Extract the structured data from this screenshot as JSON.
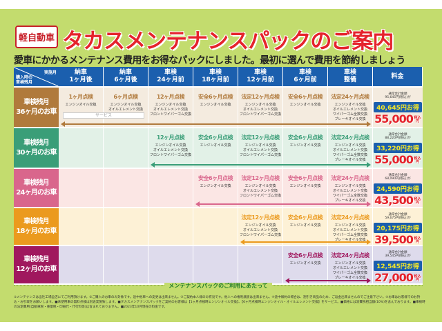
{
  "badge": "軽自動車",
  "title": "タカスメンテナンスパックのご案内",
  "subtitle": "愛車にかかるメンテナンス費用をお得なパックにしました。最初に選んで費用を節約しましょう",
  "corner": {
    "top": "実施月",
    "bottom": "購入時の\n車検残月"
  },
  "columns": [
    "納車\n1ヶ月後",
    "納車\n6ヶ月後",
    "車検\n24ヶ月前",
    "車検\n18ヶ月前",
    "車検\n12ヶ月前",
    "車検\n6ヶ月前",
    "車検\n整備",
    "料金"
  ],
  "service_label": "サービス",
  "rows": [
    {
      "label": "車検残月\n36ヶ月のお車",
      "color": "#b07a3c",
      "bg": "#f4ebdf",
      "start": 0,
      "cells": [
        [
          "1ヶ月点検",
          "エンジンオイル交換"
        ],
        [
          "6ヶ月点検",
          "エンジンオイル交換\nオイルエレメント交換"
        ],
        [
          "12ヶ月点検",
          "エンジンオイル交換\nオイルエレメント交換\nフロントワイパーゴム交換"
        ],
        [
          "安全6ヶ月点検",
          "エンジンオイル交換"
        ],
        [
          "法定12ヶ月点検",
          "エンジンオイル交換\nオイルエレメント交換\nフロントワイパーゴム交換"
        ],
        [
          "安全6ヶ月点検",
          "エンジンオイル交換"
        ],
        [
          "法定24ヶ月点検",
          "エンジンオイル交換\nオイルエレメント交換\nワイパーゴム全数交換\nブレーキオイル交換"
        ]
      ],
      "price": {
        "normal": "通常合計金額\n95,645円(税込)が",
        "save": "40,645円お得",
        "amount": "55,000",
        "unit": "税込円"
      }
    },
    {
      "label": "車検残月\n30ヶ月のお車",
      "color": "#3a9e78",
      "bg": "#e2f1e7",
      "start": 2,
      "cells": [
        null,
        null,
        [
          "12ヶ月点検",
          "エンジンオイル交換\nオイルエレメント交換\nフロントワイパーゴム交換"
        ],
        [
          "安全6ヶ月点検",
          "エンジンオイル交換"
        ],
        [
          "法定12ヶ月点検",
          "エンジンオイル交換\nオイルエレメント交換\nフロントワイパーゴム交換"
        ],
        [
          "安全6ヶ月点検",
          "エンジンオイル交換"
        ],
        [
          "法定24ヶ月点検",
          "エンジンオイル交換\nオイルエレメント交換\nワイパーゴム全数交換\nブレーキオイル交換"
        ]
      ],
      "price": {
        "normal": "通常合計金額\n88,220円(税込)が",
        "save": "33,220円お得",
        "amount": "55,000",
        "unit": "税込円"
      }
    },
    {
      "label": "車検残月\n24ヶ月のお車",
      "color": "#d9668c",
      "bg": "#fbe6e4",
      "start": 3,
      "cells": [
        null,
        null,
        null,
        [
          "安全6ヶ月点検",
          "エンジンオイル交換"
        ],
        [
          "法定12ヶ月点検",
          "エンジンオイル交換\nオイルエレメント交換\nフロントワイパーゴム交換"
        ],
        [
          "安全6ヶ月点検",
          "エンジンオイル交換"
        ],
        [
          "法定24ヶ月点検",
          "エンジンオイル交換\nオイルエレメント交換\nワイパーゴム全数交換\nブレーキオイル交換"
        ]
      ],
      "price": {
        "normal": "通常合計金額\n68,090円(税込)が",
        "save": "24,590円お得",
        "amount": "43,500",
        "unit": "税込円"
      }
    },
    {
      "label": "車検残月\n18ヶ月のお車",
      "color": "#eb9a1e",
      "bg": "#fdf1d6",
      "start": 4,
      "cells": [
        null,
        null,
        null,
        null,
        [
          "法定12ヶ月点検",
          "エンジンオイル交換\nオイルエレメント交換\nフロントワイパーゴム交換"
        ],
        [
          "安全6ヶ月点検",
          "エンジンオイル交換"
        ],
        [
          "法定24ヶ月点検",
          "エンジンオイル交換\nオイルエレメント交換\nワイパーゴム全数交換\nブレーキオイル交換"
        ]
      ],
      "price": {
        "normal": "通常合計金額\n59,675円(税込)が",
        "save": "20,175円お得",
        "amount": "39,500",
        "unit": "税込円"
      }
    },
    {
      "label": "車検残月\n12ヶ月のお車",
      "color": "#a0185e",
      "bg": "#dedbec",
      "start": 5,
      "cells": [
        null,
        null,
        null,
        null,
        null,
        [
          "安全6ヶ月点検",
          "エンジンオイル交換"
        ],
        [
          "法定24ヶ月点検",
          "エンジンオイル交換\nオイルエレメント交換\nワイパーゴム全数交換\nブレーキオイル交換"
        ]
      ],
      "price": {
        "normal": "通常合計金額\n39,545円(税込)が",
        "save": "12,545円お得",
        "amount": "27,000",
        "unit": "税込円"
      }
    }
  ],
  "footer": {
    "heading": "メンテナンスパックのご利用にあたって",
    "note": "①メンテナンスは当社工場全店にてご利用頂けます。②ご購入のお車のみ対象です。途中他車への変更は出来ません。③ご契約本人様のみ有効です。他人への権利譲渡は出来ません。④途中解約の場合は、割引き商品のため、ご返金出来ませんのでご注意下さい。⑤お車はお客様でのお持込・お引取をお願いします。■未使用車の無料点検は別途実施致します。■タカスメンテナンスパックをご契約のお客様は【1ヶ月点検時エンジンオイル交換】、【6ヶ月点検時エンジンオイル・オイルエレメント交換】をサービス。■価格には消費税相当額(10%)を含んでおります。■車検時の法定費用(自動車税・重量税・印紙代・代行料等)は含まれておりません。■2023年10月現在の料金です。"
  }
}
